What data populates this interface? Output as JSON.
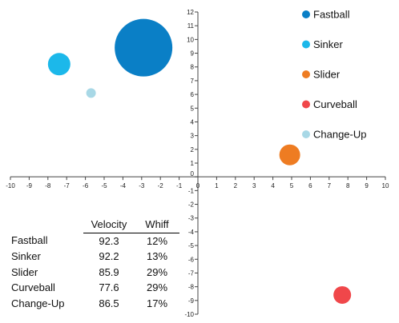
{
  "chart_data": {
    "type": "bubble",
    "xlim": [
      -10,
      10
    ],
    "ylim": [
      -10,
      12
    ],
    "x_ticks": [
      -10,
      -9,
      -8,
      -7,
      -6,
      -5,
      -4,
      -3,
      -2,
      -1,
      0,
      1,
      2,
      3,
      4,
      5,
      6,
      7,
      8,
      9,
      10
    ],
    "y_ticks": [
      -10,
      -9,
      -8,
      -7,
      -6,
      -5,
      -4,
      -3,
      -2,
      -1,
      0,
      1,
      2,
      3,
      4,
      5,
      6,
      7,
      8,
      9,
      10,
      11,
      12
    ],
    "grid": false,
    "legend_position": "top-right",
    "series": [
      {
        "name": "Fastball",
        "color": "#0a7fc6",
        "x": -2.9,
        "y": 9.4,
        "size": 12
      },
      {
        "name": "Sinker",
        "color": "#1cb8ea",
        "x": -7.4,
        "y": 8.2,
        "size": 13
      },
      {
        "name": "Slider",
        "color": "#ee7c22",
        "x": 4.9,
        "y": 1.6,
        "size": 29
      },
      {
        "name": "Curveball",
        "color": "#f0474a",
        "x": 7.7,
        "y": -8.6,
        "size": 29
      },
      {
        "name": "Change-Up",
        "color": "#a8d8e6",
        "x": -5.7,
        "y": 6.1,
        "size": 17
      }
    ]
  },
  "table": {
    "headers": [
      "",
      "Velocity",
      "Whiff"
    ],
    "rows": [
      {
        "pitch": "Fastball",
        "velocity": "92.3",
        "whiff": "12%"
      },
      {
        "pitch": "Sinker",
        "velocity": "92.2",
        "whiff": "13%"
      },
      {
        "pitch": "Slider",
        "velocity": "85.9",
        "whiff": "29%"
      },
      {
        "pitch": "Curveball",
        "velocity": "77.6",
        "whiff": "29%"
      },
      {
        "pitch": "Change-Up",
        "velocity": "86.5",
        "whiff": "17%"
      }
    ]
  }
}
